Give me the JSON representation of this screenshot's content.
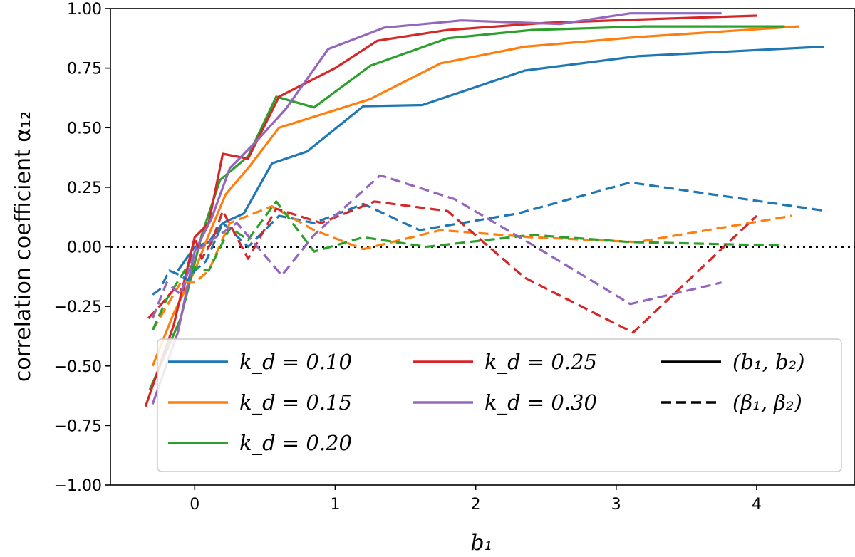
{
  "chart_data": {
    "type": "line",
    "title": "",
    "xlabel": "b₁",
    "ylabel": "correlation coefficient α₁₂",
    "xlim": [
      -0.6,
      4.7
    ],
    "ylim": [
      -1.0,
      1.0
    ],
    "xticks": [
      0,
      1,
      2,
      3,
      4
    ],
    "yticks": [
      -1.0,
      -0.75,
      -0.5,
      -0.25,
      0.0,
      0.25,
      0.5,
      0.75,
      1.0
    ],
    "xtick_labels": [
      "0",
      "1",
      "2",
      "3",
      "4"
    ],
    "ytick_labels": [
      "−1.00",
      "−0.75",
      "−0.50",
      "−0.25",
      "0.00",
      "0.25",
      "0.50",
      "0.75",
      "1.00"
    ],
    "reference_line": {
      "y": 0.0,
      "style": "dotted",
      "color": "#000000"
    },
    "legend": {
      "placement": "lower-left",
      "entries": [
        {
          "label": "k_d = 0.10",
          "color": "#1f77b4",
          "style": "solid"
        },
        {
          "label": "k_d = 0.15",
          "color": "#ff7f0e",
          "style": "solid"
        },
        {
          "label": "k_d = 0.20",
          "color": "#2ca02c",
          "style": "solid"
        },
        {
          "label": "k_d = 0.25",
          "color": "#d62728",
          "style": "solid"
        },
        {
          "label": "k_d = 0.30",
          "color": "#9467bd",
          "style": "solid"
        },
        {
          "label": "(b₁, b₂)",
          "color": "#000000",
          "style": "solid"
        },
        {
          "label": "(β₁, β₂)",
          "color": "#000000",
          "style": "dashed"
        }
      ]
    },
    "series": [
      {
        "name": "k_d = 0.10 (b1,b2)",
        "color": "#1f77b4",
        "style": "solid",
        "x": [
          -0.12,
          0.0,
          0.1,
          0.2,
          0.35,
          0.55,
          0.8,
          1.2,
          1.62,
          2.35,
          3.15,
          4.48
        ],
        "y": [
          -0.1,
          0.0,
          0.02,
          0.1,
          0.14,
          0.35,
          0.4,
          0.59,
          0.595,
          0.74,
          0.8,
          0.84
        ]
      },
      {
        "name": "k_d = 0.15 (b1,b2)",
        "color": "#ff7f0e",
        "style": "solid",
        "x": [
          -0.3,
          -0.15,
          0.0,
          0.1,
          0.22,
          0.38,
          0.6,
          1.25,
          1.75,
          2.35,
          3.15,
          4.3
        ],
        "y": [
          -0.5,
          -0.28,
          -0.1,
          0.05,
          0.22,
          0.33,
          0.5,
          0.62,
          0.77,
          0.84,
          0.88,
          0.925
        ]
      },
      {
        "name": "k_d = 0.20 (b1,b2)",
        "color": "#2ca02c",
        "style": "solid",
        "x": [
          -0.32,
          -0.1,
          0.05,
          0.18,
          0.38,
          0.58,
          0.85,
          1.25,
          1.8,
          2.4,
          3.2,
          4.2
        ],
        "y": [
          -0.6,
          -0.3,
          0.05,
          0.28,
          0.38,
          0.63,
          0.585,
          0.76,
          0.875,
          0.91,
          0.925,
          0.925
        ]
      },
      {
        "name": "k_d = 0.25 (b1,b2)",
        "color": "#d62728",
        "style": "solid",
        "x": [
          -0.35,
          -0.15,
          0.0,
          0.1,
          0.2,
          0.38,
          0.6,
          1.0,
          1.3,
          1.8,
          2.5,
          3.2,
          4.0
        ],
        "y": [
          -0.67,
          -0.33,
          0.04,
          0.1,
          0.39,
          0.37,
          0.63,
          0.75,
          0.865,
          0.91,
          0.94,
          0.955,
          0.97
        ]
      },
      {
        "name": "k_d = 0.30 (b1,b2)",
        "color": "#9467bd",
        "style": "solid",
        "x": [
          -0.3,
          -0.12,
          0.0,
          0.12,
          0.25,
          0.45,
          0.65,
          0.95,
          1.35,
          1.9,
          2.6,
          3.1,
          3.75
        ],
        "y": [
          -0.66,
          -0.36,
          -0.02,
          0.12,
          0.33,
          0.45,
          0.58,
          0.83,
          0.92,
          0.95,
          0.935,
          0.98,
          0.98
        ]
      },
      {
        "name": "k_d = 0.10 (beta1,beta2)",
        "color": "#1f77b4",
        "style": "dashed",
        "x": [
          -0.3,
          -0.25,
          -0.18,
          -0.1,
          -0.05,
          0.0,
          0.08,
          0.2,
          0.38,
          0.6,
          0.85,
          1.2,
          1.6,
          2.3,
          3.1,
          4.5
        ],
        "y": [
          -0.2,
          -0.18,
          -0.1,
          -0.12,
          -0.14,
          -0.1,
          -0.06,
          0.1,
          0.0,
          0.13,
          0.1,
          0.18,
          0.07,
          0.14,
          0.27,
          0.15
        ]
      },
      {
        "name": "k_d = 0.15 (beta1,beta2)",
        "color": "#ff7f0e",
        "style": "dashed",
        "x": [
          -0.3,
          -0.2,
          -0.1,
          0.0,
          0.1,
          0.25,
          0.55,
          0.85,
          1.2,
          1.75,
          2.4,
          3.15,
          4.25
        ],
        "y": [
          -0.35,
          -0.25,
          -0.15,
          -0.15,
          -0.1,
          0.1,
          0.17,
          0.07,
          -0.01,
          0.07,
          0.04,
          0.02,
          0.13
        ]
      },
      {
        "name": "k_d = 0.20 (beta1,beta2)",
        "color": "#2ca02c",
        "style": "dashed",
        "x": [
          -0.3,
          -0.2,
          -0.05,
          0.1,
          0.25,
          0.38,
          0.58,
          0.85,
          1.2,
          1.65,
          2.4,
          3.1,
          4.2
        ],
        "y": [
          -0.35,
          -0.22,
          -0.08,
          -0.1,
          0.08,
          0.03,
          0.19,
          -0.02,
          0.04,
          0.0,
          0.05,
          0.02,
          0.005
        ]
      },
      {
        "name": "k_d = 0.25 (beta1,beta2)",
        "color": "#d62728",
        "style": "dashed",
        "x": [
          -0.33,
          -0.25,
          -0.15,
          -0.08,
          0.0,
          0.05,
          0.12,
          0.2,
          0.38,
          0.58,
          0.9,
          1.28,
          1.8,
          2.35,
          3.12,
          4.0
        ],
        "y": [
          -0.3,
          -0.25,
          -0.18,
          -0.18,
          0.04,
          -0.05,
          0.02,
          0.15,
          -0.05,
          0.16,
          0.1,
          0.19,
          0.15,
          -0.13,
          -0.36,
          0.13
        ]
      },
      {
        "name": "k_d = 0.30 (beta1,beta2)",
        "color": "#9467bd",
        "style": "dashed",
        "x": [
          -0.3,
          -0.2,
          -0.1,
          0.0,
          0.1,
          0.3,
          0.62,
          0.85,
          1.32,
          1.85,
          2.4,
          3.1,
          3.75
        ],
        "y": [
          -0.3,
          -0.15,
          -0.2,
          -0.02,
          0.02,
          0.1,
          -0.12,
          0.05,
          0.3,
          0.2,
          0.01,
          -0.24,
          -0.15
        ]
      }
    ]
  }
}
